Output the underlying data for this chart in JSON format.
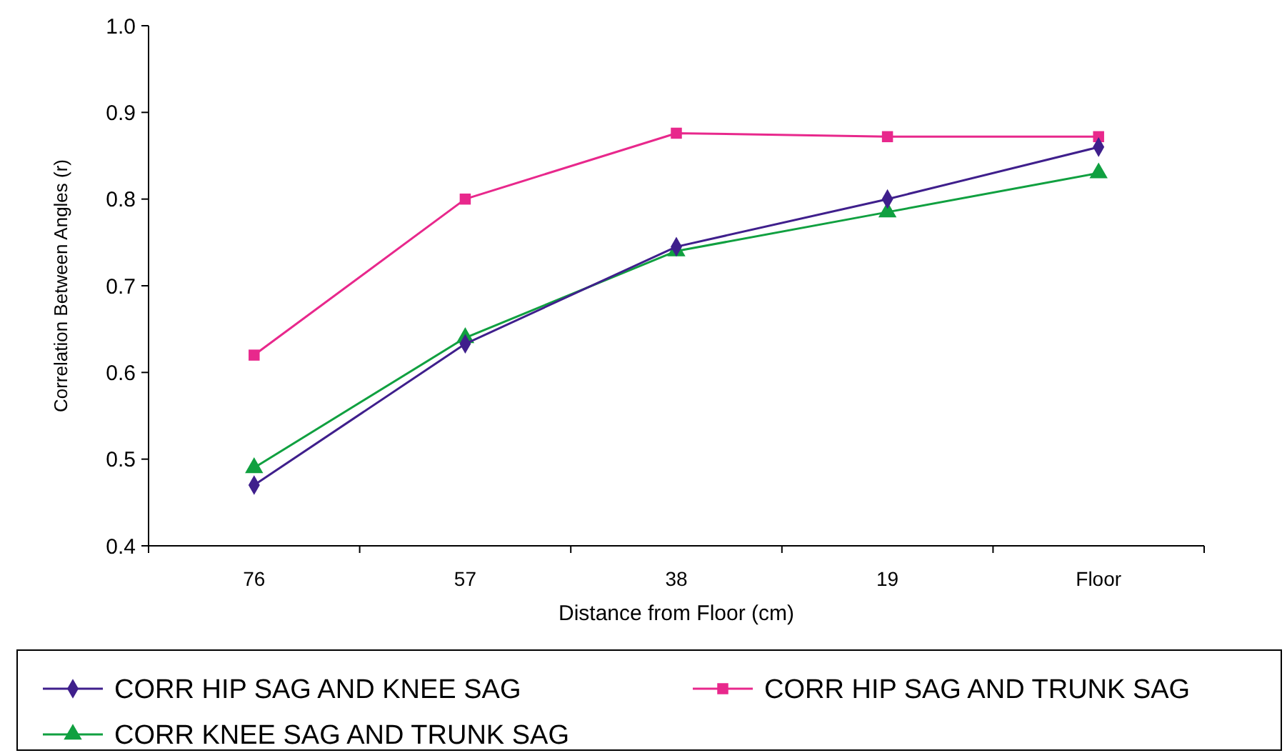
{
  "chart_data": {
    "type": "line",
    "xlabel": "Distance from Floor (cm)",
    "ylabel": "Correlation Between Angles (r)",
    "categories": [
      "76",
      "57",
      "38",
      "19",
      "Floor"
    ],
    "ylim": [
      0.4,
      1.0
    ],
    "yticks": [
      {
        "value": 0.4,
        "label": "0.4"
      },
      {
        "value": 0.5,
        "label": "0.5"
      },
      {
        "value": 0.6,
        "label": "0.6"
      },
      {
        "value": 0.7,
        "label": "0.7"
      },
      {
        "value": 0.8,
        "label": "0.8"
      },
      {
        "value": 0.9,
        "label": "0.9"
      },
      {
        "value": 1.0,
        "label": "1.0"
      }
    ],
    "legend": "bottom",
    "grid": false,
    "series": [
      {
        "name": "CORR HIP SAG AND KNEE SAG",
        "color": "#3f1f8c",
        "marker": "diamond",
        "values": [
          0.47,
          0.633,
          0.745,
          0.8,
          0.86
        ]
      },
      {
        "name": "CORR HIP SAG AND TRUNK SAG",
        "color": "#e8288c",
        "marker": "square",
        "values": [
          0.62,
          0.8,
          0.876,
          0.872,
          0.872
        ]
      },
      {
        "name": "CORR KNEE SAG AND TRUNK SAG",
        "color": "#10a040",
        "marker": "triangle",
        "values": [
          0.49,
          0.64,
          0.74,
          0.785,
          0.83
        ]
      }
    ]
  }
}
